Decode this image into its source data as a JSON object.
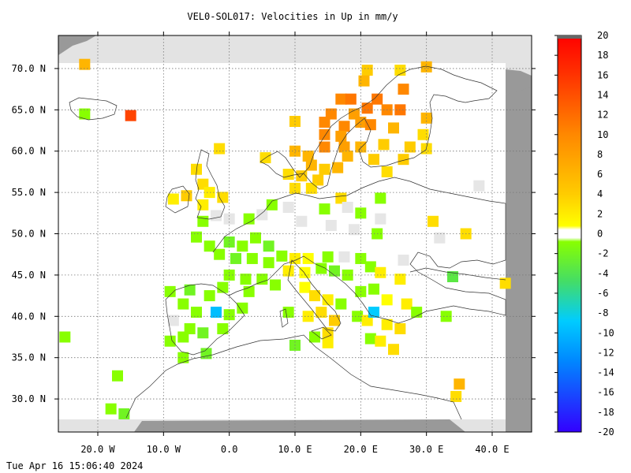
{
  "chart_data": {
    "type": "heatmap",
    "title": "VEL0-SOL017: Velocities in Up in mm/y",
    "x_ticks": [
      {
        "value": -20,
        "label": "20.0 W"
      },
      {
        "value": -10,
        "label": "10.0 W"
      },
      {
        "value": 0,
        "label": "0.0"
      },
      {
        "value": 10,
        "label": "10.0 E"
      },
      {
        "value": 20,
        "label": "20.0 E"
      },
      {
        "value": 30,
        "label": "30.0 E"
      },
      {
        "value": 40,
        "label": "40.0 E"
      }
    ],
    "y_ticks": [
      {
        "value": 70,
        "label": "70.0 N"
      },
      {
        "value": 65,
        "label": "65.0 N"
      },
      {
        "value": 60,
        "label": "60.0 N"
      },
      {
        "value": 55,
        "label": "55.0 N"
      },
      {
        "value": 50,
        "label": "50.0 N"
      },
      {
        "value": 45,
        "label": "45.0 N"
      },
      {
        "value": 40,
        "label": "40.0 N"
      },
      {
        "value": 35,
        "label": "35.0 N"
      },
      {
        "value": 30,
        "label": "30.0 N"
      }
    ],
    "xlim": [
      -26,
      46
    ],
    "ylim": [
      26,
      74
    ],
    "grid": true,
    "colorbar": {
      "labels": [
        "20",
        "18",
        "16",
        "14",
        "12",
        "10",
        "8",
        "6",
        "4",
        "2",
        "0",
        "-2",
        "-4",
        "-6",
        "-8",
        "-10",
        "-12",
        "-14",
        "-16",
        "-18",
        "-20"
      ],
      "range": [
        -20,
        20
      ]
    },
    "cells": [
      {
        "lon": -22,
        "lat": 70.5,
        "v": 5
      },
      {
        "lon": -22,
        "lat": 64.5,
        "v": -1
      },
      {
        "lon": -15,
        "lat": 64.3,
        "v": 11
      },
      {
        "lon": 21,
        "lat": 69.8,
        "v": 4
      },
      {
        "lon": 26,
        "lat": 69.8,
        "v": 3
      },
      {
        "lon": 30,
        "lat": 70.2,
        "v": 5
      },
      {
        "lon": 20.5,
        "lat": 68.5,
        "v": 5
      },
      {
        "lon": 26.5,
        "lat": 67.5,
        "v": 7
      },
      {
        "lon": 17,
        "lat": 66.3,
        "v": 7
      },
      {
        "lon": 18.5,
        "lat": 66.3,
        "v": 8
      },
      {
        "lon": 22.5,
        "lat": 66.3,
        "v": 8
      },
      {
        "lon": 21,
        "lat": 65.2,
        "v": 8
      },
      {
        "lon": 24,
        "lat": 65,
        "v": 7
      },
      {
        "lon": 26,
        "lat": 65,
        "v": 8
      },
      {
        "lon": 15.5,
        "lat": 64.5,
        "v": 7
      },
      {
        "lon": 19,
        "lat": 64.5,
        "v": 6
      },
      {
        "lon": 30,
        "lat": 64,
        "v": 5
      },
      {
        "lon": 14.5,
        "lat": 63.5,
        "v": 7
      },
      {
        "lon": 17.5,
        "lat": 63,
        "v": 7
      },
      {
        "lon": 20,
        "lat": 63.5,
        "v": 6
      },
      {
        "lon": 21.5,
        "lat": 63.2,
        "v": 7
      },
      {
        "lon": 25,
        "lat": 62.8,
        "v": 5
      },
      {
        "lon": 10,
        "lat": 63.6,
        "v": 4
      },
      {
        "lon": 14.5,
        "lat": 62,
        "v": 7
      },
      {
        "lon": 17,
        "lat": 61.8,
        "v": 6
      },
      {
        "lon": 29.5,
        "lat": 62,
        "v": 3
      },
      {
        "lon": 14.5,
        "lat": 60.5,
        "v": 7
      },
      {
        "lon": 17.5,
        "lat": 60.5,
        "v": 6
      },
      {
        "lon": 20,
        "lat": 60.5,
        "v": 5
      },
      {
        "lon": 23.5,
        "lat": 60.8,
        "v": 4
      },
      {
        "lon": 27.5,
        "lat": 60.5,
        "v": 4
      },
      {
        "lon": 30,
        "lat": 60.3,
        "v": 3
      },
      {
        "lon": 10,
        "lat": 60,
        "v": 5
      },
      {
        "lon": 12,
        "lat": 59.4,
        "v": 5
      },
      {
        "lon": 18,
        "lat": 59.4,
        "v": 5
      },
      {
        "lon": 22,
        "lat": 59,
        "v": 4
      },
      {
        "lon": 26.5,
        "lat": 59,
        "v": 4
      },
      {
        "lon": 5.5,
        "lat": 59.2,
        "v": 3
      },
      {
        "lon": -1.5,
        "lat": 60.3,
        "v": 3
      },
      {
        "lon": 12.5,
        "lat": 58.3,
        "v": 5
      },
      {
        "lon": 14.5,
        "lat": 57.8,
        "v": 4
      },
      {
        "lon": 16.5,
        "lat": 58,
        "v": 5
      },
      {
        "lon": 24,
        "lat": 57.5,
        "v": 3
      },
      {
        "lon": 9,
        "lat": 57.2,
        "v": 3
      },
      {
        "lon": 11,
        "lat": 57,
        "v": 4
      },
      {
        "lon": 13.5,
        "lat": 56.5,
        "v": 4
      },
      {
        "lon": 10,
        "lat": 55.5,
        "v": 3
      },
      {
        "lon": 12.5,
        "lat": 55.5,
        "v": 3
      },
      {
        "lon": 17,
        "lat": 54.3,
        "v": 3
      },
      {
        "lon": 23,
        "lat": 54.3,
        "v": -1
      },
      {
        "lon": 38,
        "lat": 55.8,
        "v": 0
      },
      {
        "lon": -5,
        "lat": 57.8,
        "v": 3
      },
      {
        "lon": -4,
        "lat": 56,
        "v": 3
      },
      {
        "lon": -6.5,
        "lat": 54.6,
        "v": 4
      },
      {
        "lon": -8.5,
        "lat": 54.2,
        "v": 2
      },
      {
        "lon": -3,
        "lat": 55,
        "v": 2
      },
      {
        "lon": -1,
        "lat": 54.4,
        "v": 3
      },
      {
        "lon": -4,
        "lat": 53.5,
        "v": 2
      },
      {
        "lon": -2,
        "lat": 52.2,
        "v": 0
      },
      {
        "lon": -4,
        "lat": 51.5,
        "v": -1
      },
      {
        "lon": 0,
        "lat": 51.8,
        "v": 0
      },
      {
        "lon": 3,
        "lat": 51.8,
        "v": -1
      },
      {
        "lon": 5,
        "lat": 52.3,
        "v": 0
      },
      {
        "lon": 6.5,
        "lat": 53.5,
        "v": -1
      },
      {
        "lon": 9,
        "lat": 53.2,
        "v": 0
      },
      {
        "lon": 14.5,
        "lat": 53,
        "v": -1
      },
      {
        "lon": 18,
        "lat": 53.2,
        "v": 0
      },
      {
        "lon": 20,
        "lat": 52.5,
        "v": -1
      },
      {
        "lon": 11,
        "lat": 51.5,
        "v": 0
      },
      {
        "lon": 15.5,
        "lat": 51,
        "v": 0
      },
      {
        "lon": 19,
        "lat": 50.5,
        "v": 0
      },
      {
        "lon": 22.5,
        "lat": 50,
        "v": -1
      },
      {
        "lon": 23,
        "lat": 51.8,
        "v": 0
      },
      {
        "lon": 31,
        "lat": 51.5,
        "v": 3
      },
      {
        "lon": 36,
        "lat": 50,
        "v": 3
      },
      {
        "lon": 32,
        "lat": 49.5,
        "v": 0
      },
      {
        "lon": -5,
        "lat": 49.6,
        "v": -1
      },
      {
        "lon": -3,
        "lat": 48.5,
        "v": -1
      },
      {
        "lon": 0,
        "lat": 49,
        "v": -2
      },
      {
        "lon": 2,
        "lat": 48.5,
        "v": -1
      },
      {
        "lon": 4,
        "lat": 49.5,
        "v": -1
      },
      {
        "lon": 6,
        "lat": 48.5,
        "v": -2
      },
      {
        "lon": -1.5,
        "lat": 47.5,
        "v": -1
      },
      {
        "lon": 1,
        "lat": 47,
        "v": -2
      },
      {
        "lon": 3.5,
        "lat": 47,
        "v": -1
      },
      {
        "lon": 6,
        "lat": 46.5,
        "v": -1
      },
      {
        "lon": 8,
        "lat": 47.3,
        "v": -1
      },
      {
        "lon": 10,
        "lat": 47,
        "v": 2
      },
      {
        "lon": 12,
        "lat": 47,
        "v": 1
      },
      {
        "lon": 15,
        "lat": 47.2,
        "v": -1
      },
      {
        "lon": 17.5,
        "lat": 47.2,
        "v": 0
      },
      {
        "lon": 20,
        "lat": 47,
        "v": -1
      },
      {
        "lon": 21.5,
        "lat": 46,
        "v": -1
      },
      {
        "lon": 26.5,
        "lat": 46.8,
        "v": 0
      },
      {
        "lon": 9,
        "lat": 45.5,
        "v": 2
      },
      {
        "lon": 11.5,
        "lat": 45.3,
        "v": 1
      },
      {
        "lon": 14,
        "lat": 45.8,
        "v": -1
      },
      {
        "lon": 16,
        "lat": 45.5,
        "v": -2
      },
      {
        "lon": 18,
        "lat": 45,
        "v": -1
      },
      {
        "lon": 23,
        "lat": 45.3,
        "v": 2
      },
      {
        "lon": 26,
        "lat": 44.5,
        "v": 2
      },
      {
        "lon": 34,
        "lat": 44.8,
        "v": -3
      },
      {
        "lon": 42,
        "lat": 44,
        "v": 3
      },
      {
        "lon": 0,
        "lat": 45,
        "v": -1
      },
      {
        "lon": 2.5,
        "lat": 44.5,
        "v": -1
      },
      {
        "lon": 5,
        "lat": 44.5,
        "v": -1
      },
      {
        "lon": 7,
        "lat": 43.8,
        "v": -1
      },
      {
        "lon": -1,
        "lat": 43.5,
        "v": -1
      },
      {
        "lon": 3,
        "lat": 43,
        "v": -1
      },
      {
        "lon": 11.5,
        "lat": 43.5,
        "v": 1
      },
      {
        "lon": 13,
        "lat": 42.5,
        "v": 3
      },
      {
        "lon": 15,
        "lat": 42,
        "v": 2
      },
      {
        "lon": 17,
        "lat": 41.5,
        "v": -1
      },
      {
        "lon": 20,
        "lat": 43,
        "v": -1
      },
      {
        "lon": 22,
        "lat": 43.3,
        "v": -1
      },
      {
        "lon": 24,
        "lat": 42,
        "v": 1
      },
      {
        "lon": 27,
        "lat": 41.5,
        "v": 2
      },
      {
        "lon": -9,
        "lat": 43,
        "v": -1
      },
      {
        "lon": -6,
        "lat": 43.2,
        "v": -2
      },
      {
        "lon": -3,
        "lat": 42.5,
        "v": -1
      },
      {
        "lon": -7,
        "lat": 41.5,
        "v": -1
      },
      {
        "lon": -5,
        "lat": 40.5,
        "v": -1
      },
      {
        "lon": -2,
        "lat": 40.5,
        "v": -8
      },
      {
        "lon": 0,
        "lat": 40.2,
        "v": -1
      },
      {
        "lon": 2,
        "lat": 41,
        "v": -1
      },
      {
        "lon": 9,
        "lat": 40.5,
        "v": -1
      },
      {
        "lon": 12,
        "lat": 40,
        "v": 2
      },
      {
        "lon": 14,
        "lat": 40.5,
        "v": 3
      },
      {
        "lon": 16,
        "lat": 39.5,
        "v": 4
      },
      {
        "lon": 19.5,
        "lat": 40,
        "v": -1
      },
      {
        "lon": 21,
        "lat": 39.5,
        "v": 2
      },
      {
        "lon": 22,
        "lat": 40.5,
        "v": -7
      },
      {
        "lon": 24,
        "lat": 39,
        "v": 2
      },
      {
        "lon": 26,
        "lat": 38.5,
        "v": 3
      },
      {
        "lon": 28.5,
        "lat": 40.5,
        "v": -1
      },
      {
        "lon": 33,
        "lat": 40,
        "v": -1
      },
      {
        "lon": -8.5,
        "lat": 39.5,
        "v": 0
      },
      {
        "lon": -6,
        "lat": 38.5,
        "v": -1
      },
      {
        "lon": -4,
        "lat": 38,
        "v": -2
      },
      {
        "lon": -1,
        "lat": 38.5,
        "v": -1
      },
      {
        "lon": -9,
        "lat": 37,
        "v": -1
      },
      {
        "lon": -7,
        "lat": 37.5,
        "v": -1
      },
      {
        "lon": -3.5,
        "lat": 35.5,
        "v": -2
      },
      {
        "lon": -7,
        "lat": 35,
        "v": -1
      },
      {
        "lon": -25,
        "lat": 37.5,
        "v": -1
      },
      {
        "lon": 10,
        "lat": 36.5,
        "v": -2
      },
      {
        "lon": 13,
        "lat": 37.5,
        "v": -1
      },
      {
        "lon": 15,
        "lat": 38,
        "v": 3
      },
      {
        "lon": 15,
        "lat": 36.8,
        "v": 2
      },
      {
        "lon": 21.5,
        "lat": 37.3,
        "v": -1
      },
      {
        "lon": 23,
        "lat": 37,
        "v": 2
      },
      {
        "lon": 25,
        "lat": 36,
        "v": 3
      },
      {
        "lon": -17,
        "lat": 32.8,
        "v": -1
      },
      {
        "lon": -18,
        "lat": 28.8,
        "v": -1
      },
      {
        "lon": -16,
        "lat": 28.2,
        "v": -2
      },
      {
        "lon": 35,
        "lat": 31.8,
        "v": 5
      },
      {
        "lon": 34.5,
        "lat": 30.3,
        "v": 3
      }
    ]
  },
  "footer": {
    "timestamp": "Tue Apr 16 15:06:40 2024"
  }
}
